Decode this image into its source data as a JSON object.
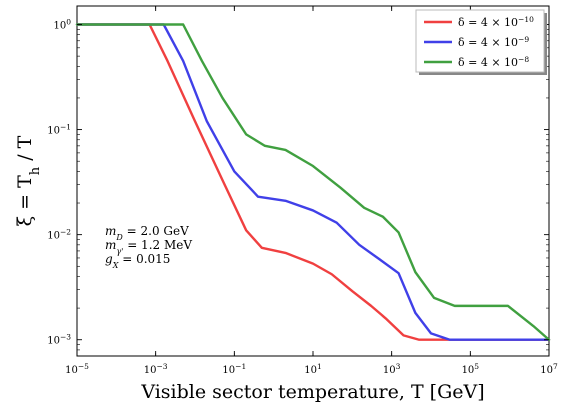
{
  "chart_data": {
    "type": "line",
    "xscale": "log",
    "yscale": "log",
    "xlim": [
      1e-05,
      10000000.0
    ],
    "ylim": [
      0.0007,
      1.5
    ],
    "xlabel": "Visible sector temperature, T [GeV]",
    "ylabel": "ξ = T_h / T",
    "x_ticks": [
      "10^-5",
      "10^-3",
      "10^-1",
      "10^1",
      "10^3",
      "10^5",
      "10^7"
    ],
    "y_ticks": [
      "10^-3",
      "10^-2",
      "10^-1",
      "10^0"
    ],
    "grid": false,
    "legend_position": "top-right",
    "annotations": [
      "m_D = 2.0 GeV",
      "m_γ' = 1.2 MeV",
      "g_X = 0.015"
    ],
    "series": [
      {
        "name": "δ = 4 × 10^-10",
        "color": "#f04040",
        "points": [
          [
            1e-05,
            1.0
          ],
          [
            0.0007,
            1.0
          ],
          [
            0.002,
            0.45
          ],
          [
            0.01,
            0.12
          ],
          [
            0.05,
            0.033
          ],
          [
            0.2,
            0.011
          ],
          [
            0.5,
            0.0075
          ],
          [
            2,
            0.0067
          ],
          [
            10,
            0.0053
          ],
          [
            30,
            0.0042
          ],
          [
            100,
            0.0029
          ],
          [
            300,
            0.0021
          ],
          [
            700,
            0.0016
          ],
          [
            2000,
            0.0011
          ],
          [
            5000,
            0.001
          ],
          [
            10000000.0,
            0.001
          ]
        ]
      },
      {
        "name": "δ = 4 × 10^-9",
        "color": "#4040e8",
        "points": [
          [
            1e-05,
            1.0
          ],
          [
            0.0016,
            1.0
          ],
          [
            0.005,
            0.45
          ],
          [
            0.02,
            0.12
          ],
          [
            0.1,
            0.04
          ],
          [
            0.4,
            0.023
          ],
          [
            2,
            0.021
          ],
          [
            10,
            0.017
          ],
          [
            40,
            0.013
          ],
          [
            150,
            0.008
          ],
          [
            500,
            0.0058
          ],
          [
            1500,
            0.0043
          ],
          [
            4000,
            0.0018
          ],
          [
            10000,
            0.00115
          ],
          [
            30000,
            0.001
          ],
          [
            10000000.0,
            0.001
          ]
        ]
      },
      {
        "name": "δ = 4 × 10^-8",
        "color": "#40a040",
        "points": [
          [
            1e-05,
            1.0
          ],
          [
            0.005,
            1.0
          ],
          [
            0.015,
            0.45
          ],
          [
            0.05,
            0.2
          ],
          [
            0.2,
            0.09
          ],
          [
            0.6,
            0.07
          ],
          [
            2,
            0.064
          ],
          [
            10,
            0.045
          ],
          [
            50,
            0.028
          ],
          [
            200,
            0.018
          ],
          [
            600,
            0.0148
          ],
          [
            1500,
            0.0105
          ],
          [
            4000,
            0.0044
          ],
          [
            12000,
            0.0025
          ],
          [
            40000,
            0.0021
          ],
          [
            200000,
            0.0021
          ],
          [
            900000,
            0.0021
          ],
          [
            4000000,
            0.00135
          ],
          [
            10000000.0,
            0.001
          ]
        ]
      }
    ]
  }
}
